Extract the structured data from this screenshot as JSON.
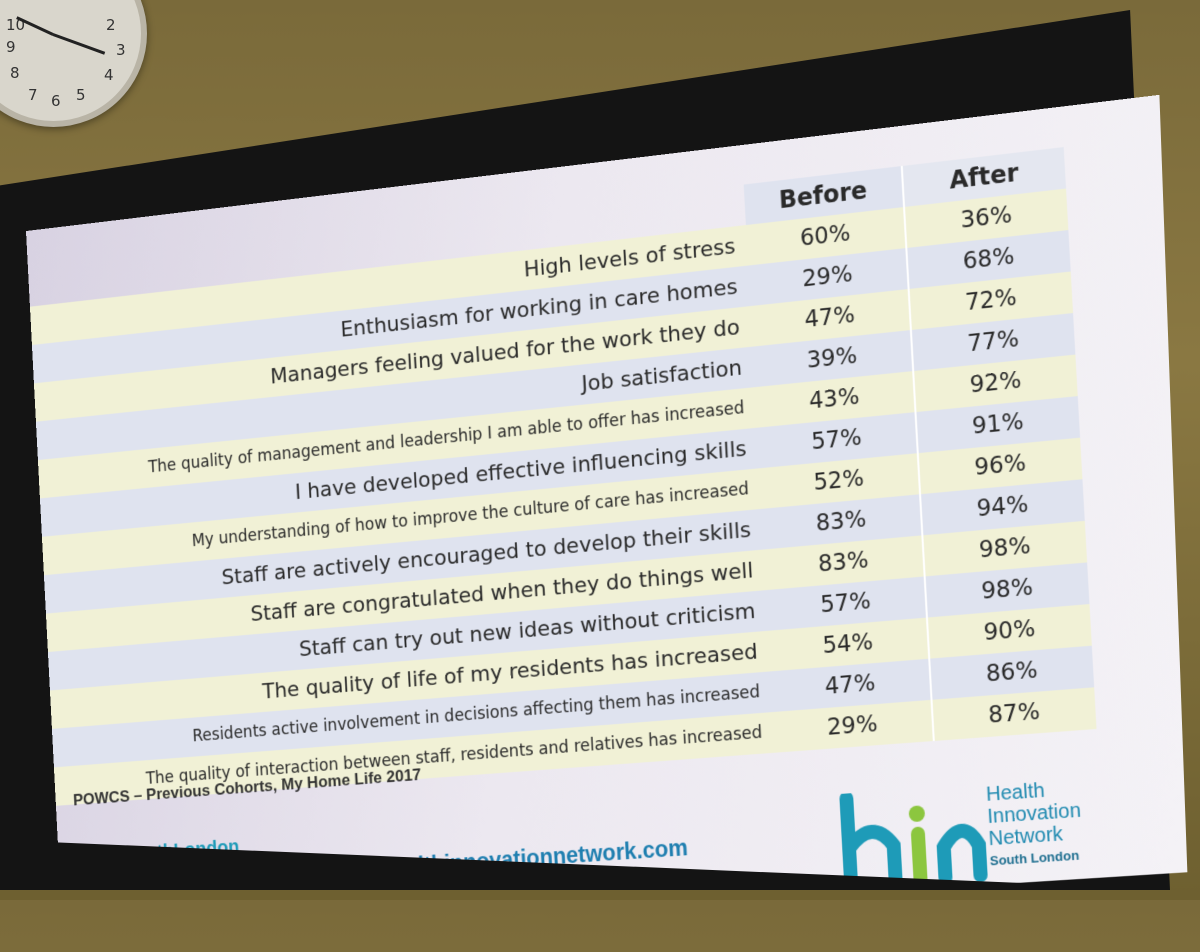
{
  "table": {
    "headers": {
      "before": "Before",
      "after": "After"
    },
    "rows": [
      {
        "label": "High levels of stress",
        "before": "60%",
        "after": "36%"
      },
      {
        "label": "Enthusiasm for working in care homes",
        "before": "29%",
        "after": "68%"
      },
      {
        "label": "Managers feeling valued for the work they do",
        "before": "47%",
        "after": "72%"
      },
      {
        "label": "Job satisfaction",
        "before": "39%",
        "after": "77%"
      },
      {
        "label": "The quality of management and leadership I am able to offer has increased",
        "before": "43%",
        "after": "92%"
      },
      {
        "label": "I have developed effective influencing skills",
        "before": "57%",
        "after": "91%"
      },
      {
        "label": "My understanding of how to improve the culture of care has increased",
        "before": "52%",
        "after": "96%"
      },
      {
        "label": "Staff are actively encouraged to develop their skills",
        "before": "83%",
        "after": "94%"
      },
      {
        "label": "Staff are congratulated when they do things well",
        "before": "83%",
        "after": "98%"
      },
      {
        "label": "Staff can try out new ideas without criticism",
        "before": "57%",
        "after": "98%"
      },
      {
        "label": "The quality of life of my residents has increased",
        "before": "54%",
        "after": "90%"
      },
      {
        "label": "Residents active involvement in decisions affecting them has increased",
        "before": "47%",
        "after": "86%"
      },
      {
        "label": "The quality of interaction between staff, residents and relatives has increased",
        "before": "29%",
        "after": "87%"
      }
    ]
  },
  "source": "POWCS – Previous Cohorts, My Home Life 2017",
  "twitter": "@HINSouthLondon",
  "url": "www.healthinnovationnetwork.com",
  "logo": {
    "mark": "hin",
    "line1": "Health",
    "line2": "Innovation",
    "line3": "Network",
    "line4": "South London"
  },
  "clock": {
    "numerals": [
      "10",
      "2",
      "9",
      "3",
      "8",
      "4",
      "7",
      "6",
      "5"
    ]
  },
  "colors": {
    "row_yellow": "#f1f1d6",
    "row_blue": "#dfe3ef",
    "brand_teal": "#1e9bb8",
    "brand_blue": "#1f7fb0",
    "brand_green": "#8cc63f"
  }
}
